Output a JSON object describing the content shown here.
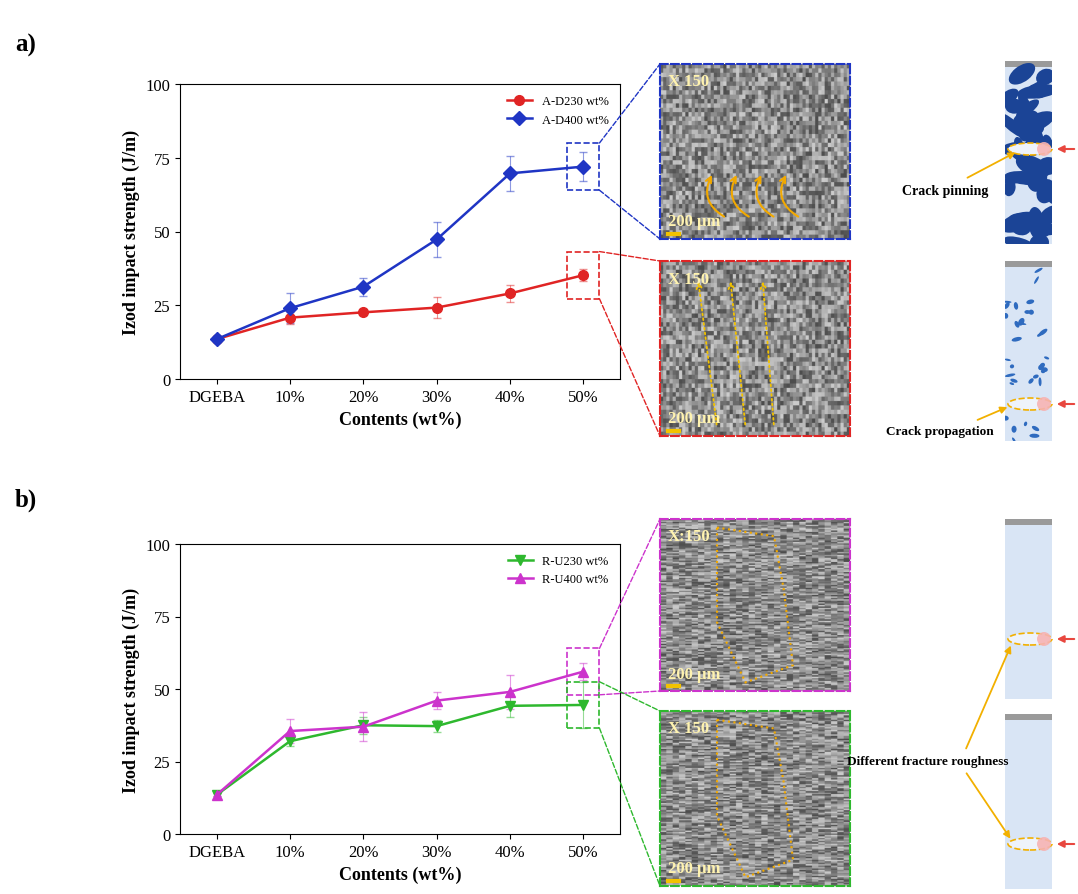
{
  "chart_data": [
    {
      "type": "line",
      "title": "a)",
      "x_label": "Contents (wt%)",
      "y_label": "Izod impact strength (J/m)",
      "categories": [
        "DGEBA",
        "10%",
        "20%",
        "30%",
        "40%",
        "50%"
      ],
      "series": [
        {
          "name": "A-D230 wt%",
          "color": "#e02424",
          "marker": "o",
          "values": [
            13.5,
            20.8,
            22.6,
            24.2,
            29.0,
            35.2
          ],
          "error": [
            0.5,
            2.0,
            1.0,
            3.5,
            3.0,
            2.0
          ]
        },
        {
          "name": "A-D400 wt%",
          "color": "#1f35c4",
          "marker": "D",
          "values": [
            13.5,
            24.0,
            31.3,
            47.3,
            69.7,
            72.0
          ],
          "error": [
            0.5,
            5.0,
            3.0,
            6.0,
            6.0,
            5.0
          ]
        }
      ],
      "ylim": [
        0,
        100
      ],
      "yticks": [
        0,
        25,
        50,
        75,
        100
      ],
      "grid": false,
      "legend": "upper right",
      "annotations": [
        "X 150",
        "200 µm",
        "X 150",
        "200 µm",
        "Crack pinning",
        "Crack propagation"
      ]
    },
    {
      "type": "line",
      "title": "b)",
      "x_label": "Contents (wt%)",
      "y_label": "Izod impact strength (J/m)",
      "categories": [
        "DGEBA",
        "10%",
        "20%",
        "30%",
        "40%",
        "50%"
      ],
      "series": [
        {
          "name": "R-U230 wt%",
          "color": "#2eb82e",
          "marker": "v",
          "values": [
            13.5,
            32.0,
            37.5,
            37.2,
            44.2,
            44.5
          ],
          "error": [
            0.5,
            1.5,
            3.0,
            2.0,
            4.0,
            8.0
          ]
        },
        {
          "name": "R-U400 wt%",
          "color": "#cc33cc",
          "marker": "^",
          "values": [
            13.5,
            35.5,
            37.0,
            46.0,
            49.0,
            56.0
          ],
          "error": [
            0.5,
            4.0,
            5.0,
            3.0,
            6.0,
            3.0
          ]
        }
      ],
      "ylim": [
        0,
        100
      ],
      "yticks": [
        0,
        25,
        50,
        75,
        100
      ],
      "grid": false,
      "legend": "upper right",
      "annotations": [
        "X:150",
        "200 µm",
        "X 150",
        "200 µm",
        "Different fracture roughness"
      ]
    }
  ]
}
